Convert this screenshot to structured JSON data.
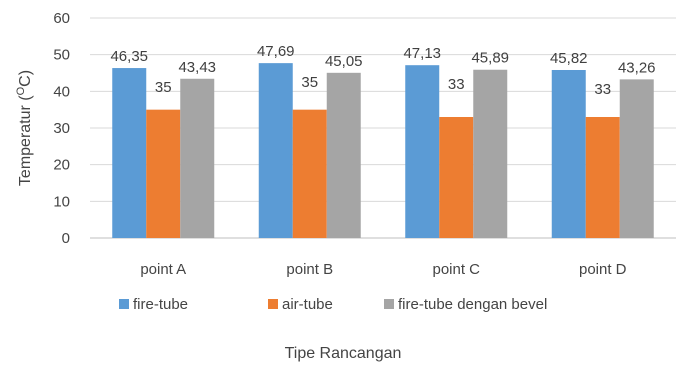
{
  "chart_data": {
    "type": "bar",
    "categories": [
      "point A",
      "point B",
      "point C",
      "point D"
    ],
    "series": [
      {
        "name": "fire-tube",
        "values": [
          46.35,
          47.69,
          47.13,
          45.82
        ],
        "labels": [
          "46,35",
          "47,69",
          "47,13",
          "45,82"
        ],
        "color": "#5B9BD5"
      },
      {
        "name": "air-tube",
        "values": [
          35,
          35,
          33,
          33
        ],
        "labels": [
          "35",
          "35",
          "33",
          "33"
        ],
        "color": "#ED7D31"
      },
      {
        "name": "fire-tube dengan bevel",
        "values": [
          43.43,
          45.05,
          45.89,
          43.26
        ],
        "labels": [
          "43,43",
          "45,05",
          "45,89",
          "43,26"
        ],
        "color": "#A5A5A5"
      }
    ],
    "yticks": [
      "0",
      "10",
      "20",
      "30",
      "40",
      "50",
      "60"
    ],
    "ylim": [
      0,
      60
    ],
    "ylabel_prefix": "Temperatur (",
    "ylabel_super": "O",
    "ylabel_suffix": "C)",
    "xlabel": "Tipe Rancangan",
    "grid": true,
    "legend_position": "bottom"
  }
}
